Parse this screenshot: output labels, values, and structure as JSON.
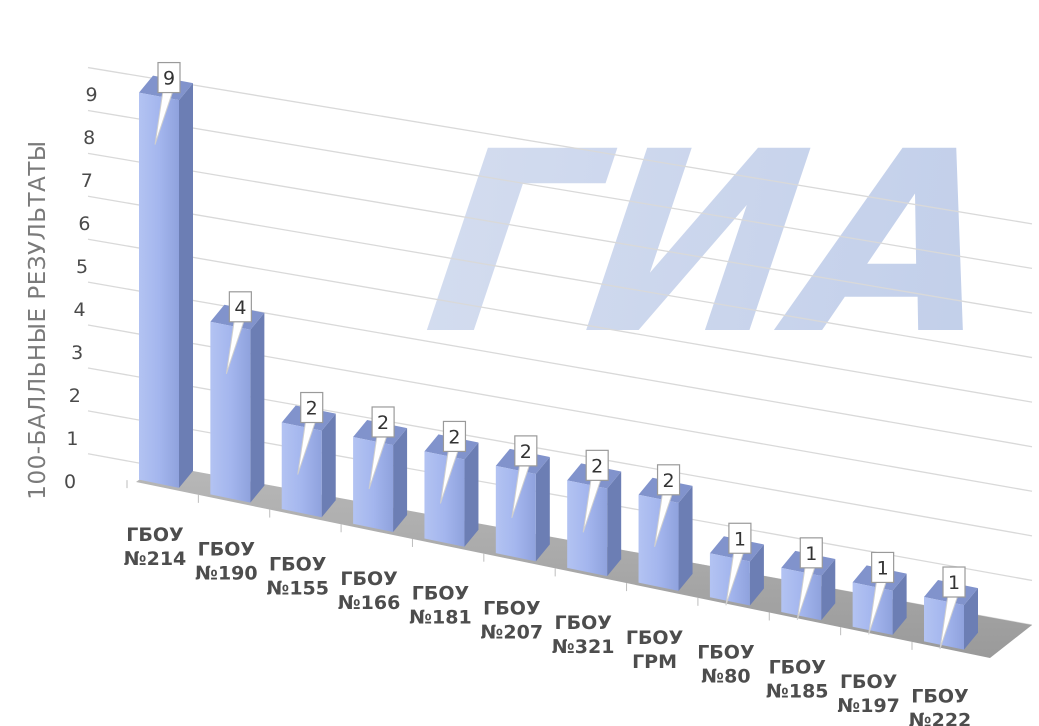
{
  "watermark": "ГИА",
  "chart_data": {
    "type": "bar",
    "ylabel": "100-БАЛЛЬНЫЕ РЕЗУЛЬТАТЫ",
    "xlabel": "",
    "ylim": [
      0,
      9
    ],
    "yticks": [
      "0",
      "1",
      "2",
      "3",
      "4",
      "5",
      "6",
      "7",
      "8",
      "9"
    ],
    "grid": true,
    "categories": [
      [
        "ГБОУ",
        "№214"
      ],
      [
        "ГБОУ",
        "№190"
      ],
      [
        "ГБОУ",
        "№155"
      ],
      [
        "ГБОУ",
        "№166"
      ],
      [
        "ГБОУ",
        "№181"
      ],
      [
        "ГБОУ",
        "№207"
      ],
      [
        "ГБОУ",
        "№321"
      ],
      [
        "ГБОУ",
        "ГРМ"
      ],
      [
        "ГБОУ",
        "№80"
      ],
      [
        "ГБОУ",
        "№185"
      ],
      [
        "ГБОУ",
        "№197"
      ],
      [
        "ГБОУ",
        "№222"
      ]
    ],
    "values": [
      9,
      4,
      2,
      2,
      2,
      2,
      2,
      2,
      1,
      1,
      1,
      1
    ],
    "data_labels": [
      "9",
      "4",
      "2",
      "2",
      "2",
      "2",
      "2",
      "2",
      "1",
      "1",
      "1",
      "1"
    ],
    "colors": {
      "bar_front": "#9fb1ea",
      "bar_side": "#6c7eb4",
      "bar_top": "#8193cc",
      "floor": "#a8a8a8",
      "grid": "#d9d9d9",
      "watermark": "#c9d4ea"
    }
  }
}
